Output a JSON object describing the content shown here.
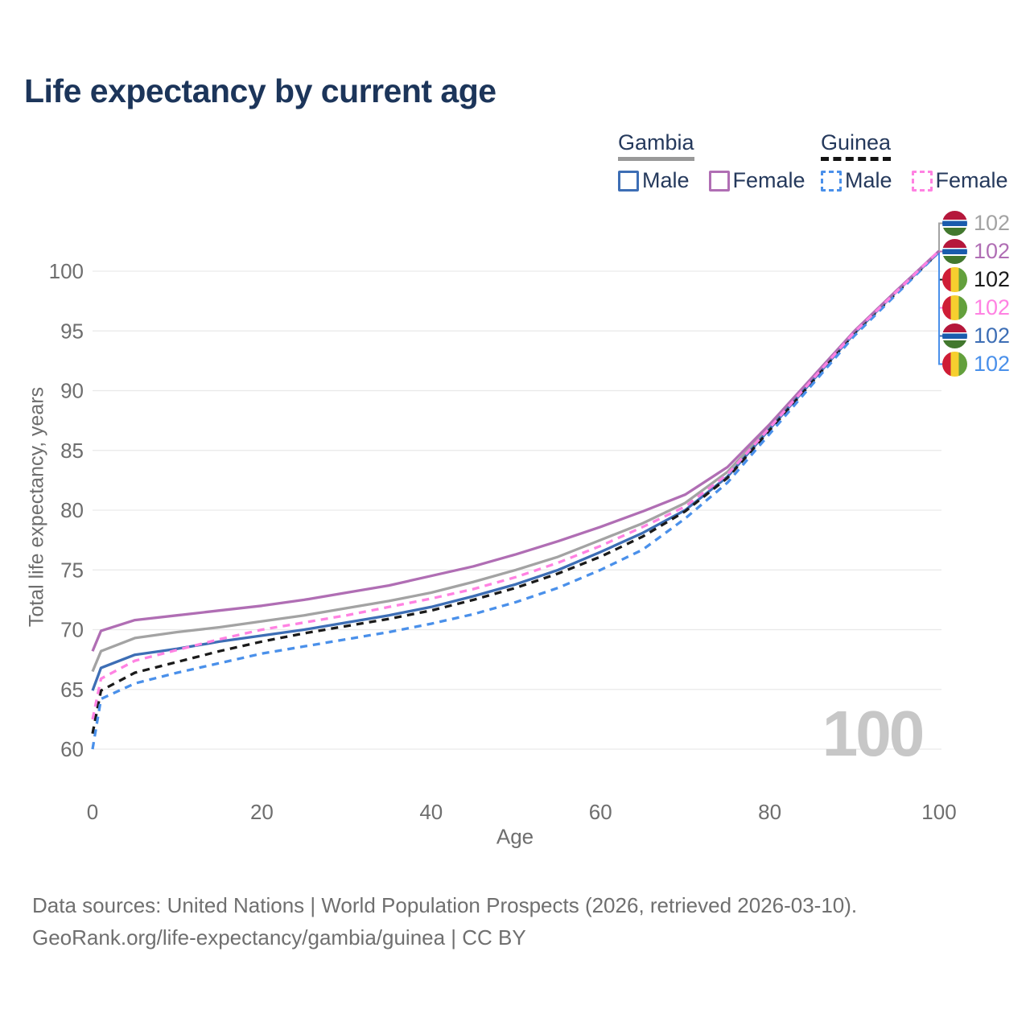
{
  "header": {
    "title": "Life expectancy by current age"
  },
  "legend": {
    "groups": [
      {
        "label": "Gambia",
        "line_style": "solid",
        "underline_color": "#999999",
        "items": [
          {
            "label": "Male",
            "color": "#3d6eb5",
            "dash": false
          },
          {
            "label": "Female",
            "color": "#b06eb4",
            "dash": false
          }
        ]
      },
      {
        "label": "Guinea",
        "line_style": "dashed",
        "underline_color": "#141414",
        "items": [
          {
            "label": "Male",
            "color": "#4a90ea",
            "dash": true
          },
          {
            "label": "Female",
            "color": "#ff82e2",
            "dash": true
          }
        ]
      }
    ]
  },
  "chart_data": {
    "type": "line",
    "title": "Life expectancy by current age",
    "xlabel": "Age",
    "ylabel": "Total life expectancy, years",
    "xlim": [
      0,
      100
    ],
    "ylim": [
      60,
      102
    ],
    "x_ticks": [
      0,
      20,
      40,
      60,
      80,
      100
    ],
    "y_ticks": [
      60,
      65,
      70,
      75,
      80,
      85,
      90,
      95,
      100
    ],
    "grid": "horizontal",
    "grid_color": "#e9e9e9",
    "tick_color": "#6e6e6e",
    "age_indicator": "100",
    "age_indicator_color": "#c7c7c7",
    "legend_position": "top-right",
    "ages": [
      0,
      1,
      5,
      10,
      15,
      20,
      25,
      30,
      35,
      40,
      45,
      50,
      55,
      60,
      65,
      70,
      75,
      80,
      85,
      90,
      95,
      100
    ],
    "series": [
      {
        "id": "gambia-all",
        "country": "gambia",
        "sex": "All",
        "color": "#a3a3a3",
        "dash": "solid",
        "end_label": "102",
        "values": [
          66.5,
          68.2,
          69.3,
          69.8,
          70.2,
          70.7,
          71.2,
          71.8,
          72.4,
          73.1,
          74.0,
          75.0,
          76.1,
          77.5,
          78.9,
          80.6,
          83.2,
          87.0,
          90.9,
          94.9,
          98.3,
          101.6
        ]
      },
      {
        "id": "gambia-female",
        "country": "gambia",
        "sex": "Female",
        "color": "#b06eb4",
        "dash": "solid",
        "end_label": "102",
        "values": [
          68.2,
          69.9,
          70.8,
          71.2,
          71.6,
          72.0,
          72.5,
          73.1,
          73.7,
          74.5,
          75.3,
          76.3,
          77.4,
          78.6,
          79.9,
          81.3,
          83.6,
          87.2,
          91.1,
          95.0,
          98.4,
          101.7
        ]
      },
      {
        "id": "guinea-all",
        "country": "guinea",
        "sex": "All",
        "color": "#1a1a1a",
        "dash": "dashed",
        "end_label": "102",
        "values": [
          61.3,
          64.9,
          66.4,
          67.3,
          68.2,
          69.0,
          69.7,
          70.3,
          70.9,
          71.6,
          72.5,
          73.5,
          74.7,
          76.1,
          77.8,
          79.9,
          82.7,
          86.7,
          90.7,
          94.8,
          98.2,
          101.6
        ]
      },
      {
        "id": "guinea-female",
        "country": "guinea",
        "sex": "Female",
        "color": "#ff82e2",
        "dash": "dashed",
        "end_label": "102",
        "values": [
          62.5,
          65.9,
          67.4,
          68.3,
          69.2,
          70.0,
          70.6,
          71.2,
          71.9,
          72.6,
          73.4,
          74.4,
          75.6,
          77.0,
          78.6,
          80.3,
          83.0,
          86.9,
          90.9,
          94.9,
          98.3,
          101.7
        ]
      },
      {
        "id": "gambia-male",
        "country": "gambia",
        "sex": "Male",
        "color": "#3d6eb5",
        "dash": "solid",
        "end_label": "102",
        "values": [
          64.9,
          66.8,
          67.9,
          68.4,
          69.0,
          69.5,
          70.0,
          70.6,
          71.2,
          71.9,
          72.8,
          73.8,
          75.0,
          76.5,
          78.1,
          80.0,
          82.8,
          86.8,
          90.8,
          94.8,
          98.3,
          101.6
        ]
      },
      {
        "id": "guinea-male",
        "country": "guinea",
        "sex": "Male",
        "color": "#4a90ea",
        "dash": "dashed",
        "end_label": "102",
        "values": [
          60.0,
          64.2,
          65.5,
          66.4,
          67.2,
          68.0,
          68.6,
          69.2,
          69.8,
          70.5,
          71.3,
          72.3,
          73.5,
          75.0,
          76.7,
          79.3,
          82.3,
          86.4,
          90.5,
          94.6,
          98.1,
          101.6
        ]
      }
    ],
    "flags": {
      "gambia": {
        "red": "#b5173b",
        "white": "#ffffff",
        "blue": "#1a5cad",
        "green": "#42782e"
      },
      "guinea": {
        "red": "#cf1d35",
        "yellow": "#f6cf2f",
        "green": "#63a03c"
      }
    }
  },
  "footer": {
    "line1": "Data sources: United Nations | World Population Prospects (2026, retrieved 2026-03-10).",
    "line2": "GeoRank.org/life-expectancy/gambia/guinea | CC BY"
  }
}
